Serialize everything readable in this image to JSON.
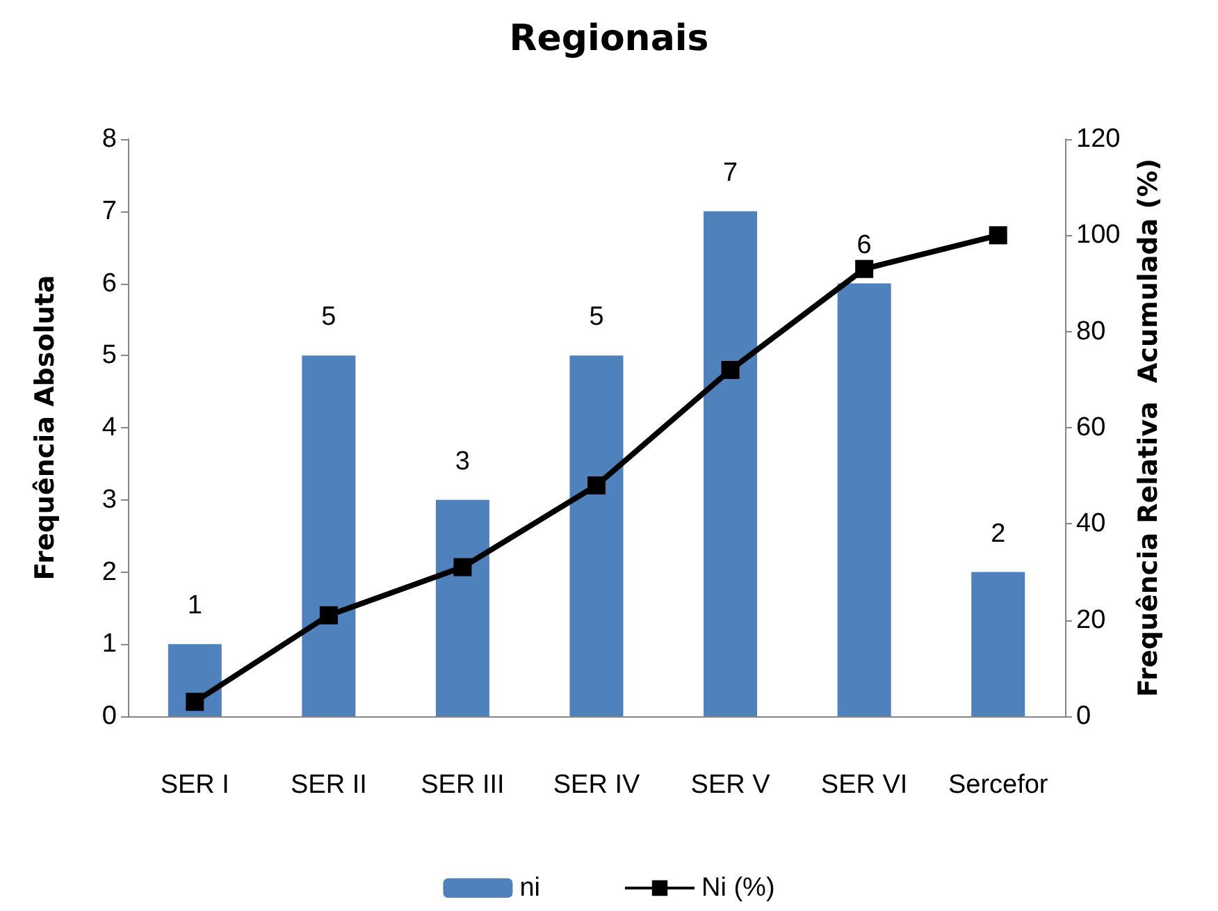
{
  "chart_data": {
    "type": "bar",
    "title": "Regionais",
    "ylabel": "Frequência Absoluta",
    "y2label": "Frequência Relativa  Acumulada (%)",
    "categories": [
      "SER I",
      "SER II",
      "SER III",
      "SER IV",
      "SER V",
      "SER VI",
      "Sercefor"
    ],
    "series": [
      {
        "name": "ni",
        "color": "#4f81bd",
        "values": [
          1,
          5,
          3,
          5,
          7,
          6,
          2
        ],
        "value_labels": [
          "1",
          "5",
          "3",
          "5",
          "7",
          "6",
          "2"
        ]
      },
      {
        "name": "Ni (%)",
        "type": "line",
        "axis": "y2",
        "color": "#000000",
        "values": [
          3,
          21,
          31,
          48,
          72,
          93,
          100
        ],
        "marker": "square",
        "line_style": "solid"
      }
    ],
    "ylim": [
      0,
      8
    ],
    "yticks": [
      0,
      1,
      2,
      3,
      4,
      5,
      6,
      7,
      8
    ],
    "y2lim": [
      0,
      120
    ],
    "y2ticks": [
      0,
      20,
      40,
      60,
      80,
      100,
      120
    ],
    "grid": false,
    "legend": "bottom"
  }
}
